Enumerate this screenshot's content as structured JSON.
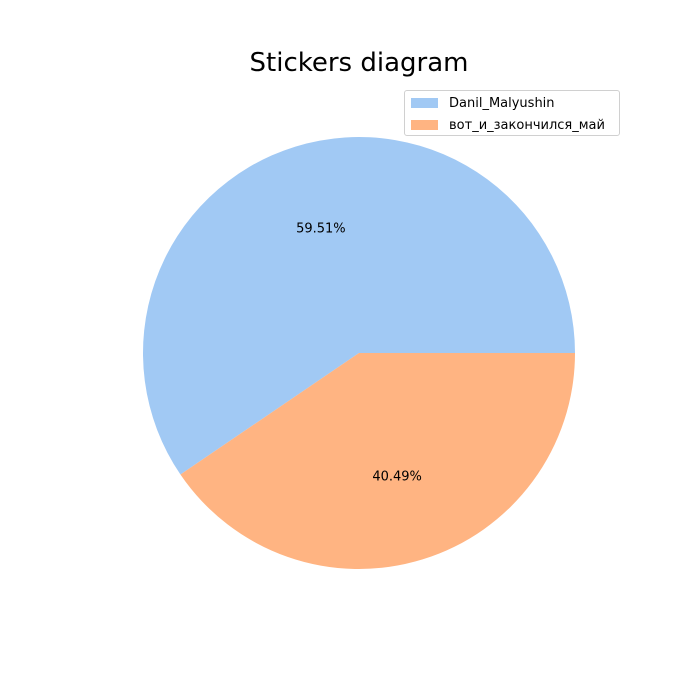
{
  "chart_data": {
    "type": "pie",
    "title": "Stickers diagram",
    "categories": [
      "Danil_Malyushin",
      "вот_и_закончился_май"
    ],
    "values": [
      59.51,
      40.49
    ],
    "labels": [
      "59.51%",
      "40.49%"
    ],
    "colors": [
      "#a1c9f4",
      "#ffb482"
    ],
    "legend_position": "upper-right"
  }
}
